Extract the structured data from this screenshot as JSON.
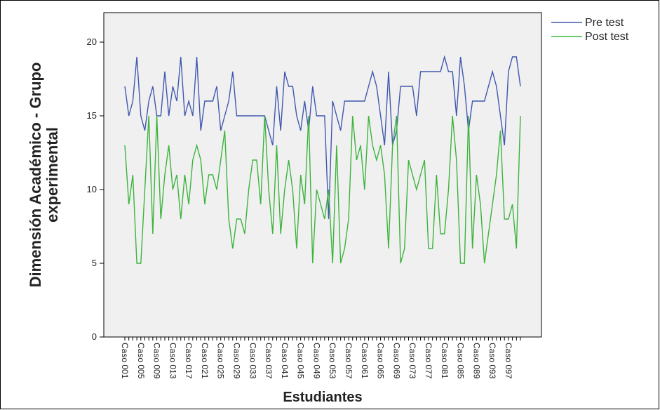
{
  "chart_data": {
    "type": "line",
    "y_label": "Dimensión Académico - Grupo experimental",
    "x_label": "Estudiantes",
    "categories": [
      "Caso 001",
      null,
      null,
      null,
      "Caso 005",
      null,
      null,
      null,
      "Caso 009",
      null,
      null,
      null,
      "Caso 013",
      null,
      null,
      null,
      "Caso 017",
      null,
      null,
      null,
      "Caso 021",
      null,
      null,
      null,
      "Caso 025",
      null,
      null,
      null,
      "Caso 029",
      null,
      null,
      null,
      "Caso 033",
      null,
      null,
      null,
      "Caso 037",
      null,
      null,
      null,
      "Caso 041",
      null,
      null,
      null,
      "Caso 045",
      null,
      null,
      null,
      "Caso 049",
      null,
      null,
      null,
      "Caso 053",
      null,
      null,
      null,
      "Caso 057",
      null,
      null,
      null,
      "Caso 061",
      null,
      null,
      null,
      "Caso 065",
      null,
      null,
      null,
      "Caso 069",
      null,
      null,
      null,
      "Caso 073",
      null,
      null,
      null,
      "Caso 077",
      null,
      null,
      null,
      "Caso 081",
      null,
      null,
      null,
      "Caso 085",
      null,
      null,
      null,
      "Caso 089",
      null,
      null,
      null,
      "Caso 093",
      null,
      null,
      null,
      "Caso 097",
      null,
      null,
      null
    ],
    "series": [
      {
        "name": "Pre test",
        "color": "#4058b0",
        "values": [
          17,
          15,
          16,
          19,
          15,
          14,
          16,
          17,
          15,
          15,
          18,
          15,
          17,
          16,
          19,
          15,
          16,
          15,
          19,
          14,
          16,
          16,
          16,
          17,
          14,
          15,
          16,
          18,
          15,
          15,
          15,
          15,
          15,
          15,
          15,
          15,
          14,
          13,
          17,
          14,
          18,
          17,
          17,
          15,
          14,
          16,
          14,
          17,
          15,
          15,
          15,
          8,
          16,
          15,
          14,
          16,
          16,
          16,
          16,
          16,
          16,
          17,
          18,
          17,
          15,
          13,
          18,
          13,
          14,
          17,
          17,
          17,
          17,
          15,
          18,
          18,
          18,
          18,
          18,
          18,
          19,
          18,
          18,
          15,
          19,
          17,
          14,
          16,
          16,
          16,
          16,
          17,
          18,
          17,
          15,
          13,
          18,
          19,
          19,
          17
        ]
      },
      {
        "name": "Post test",
        "color": "#3cb43c",
        "values": [
          13,
          9,
          11,
          5,
          5,
          10,
          15,
          7,
          15,
          8,
          11,
          13,
          10,
          11,
          8,
          11,
          9,
          12,
          13,
          12,
          9,
          11,
          11,
          10,
          12,
          14,
          8,
          6,
          8,
          8,
          7,
          10,
          12,
          12,
          9,
          15,
          10,
          7,
          13,
          7,
          10,
          12,
          10,
          6,
          11,
          9,
          15,
          5,
          10,
          9,
          8,
          10,
          5,
          13,
          5,
          6,
          8,
          15,
          12,
          13,
          10,
          15,
          13,
          12,
          13,
          11,
          6,
          13,
          15,
          5,
          6,
          12,
          11,
          10,
          11,
          12,
          6,
          6,
          11,
          7,
          7,
          10,
          15,
          12,
          5,
          5,
          15,
          6,
          11,
          9,
          5,
          7,
          9,
          11,
          14,
          8,
          8,
          9,
          6,
          15
        ]
      }
    ],
    "ylim": [
      0,
      22
    ],
    "yticks": [
      0,
      5,
      10,
      15,
      20
    ]
  }
}
